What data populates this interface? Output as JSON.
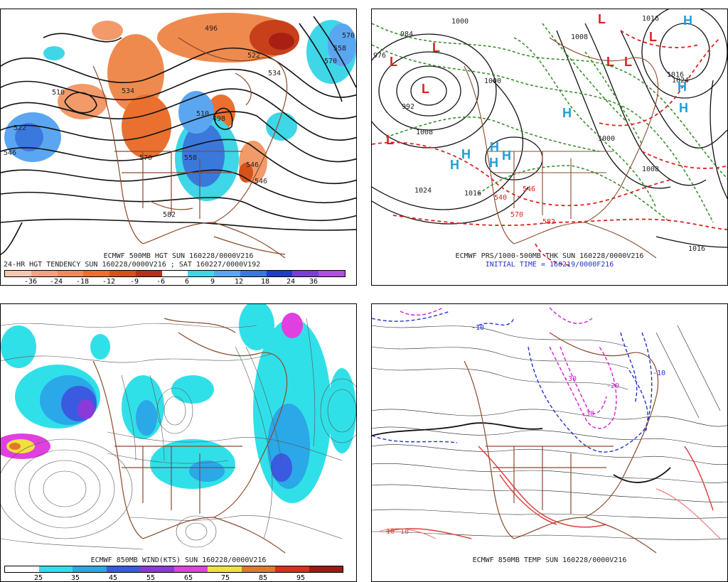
{
  "panels": {
    "p1": {
      "title": "ECMWF 500MB HGT SUN 160228/0000V216",
      "subtitle": "24-HR HGT TENDENCY SUN 160228/0000V216 ; SAT 160227/0000V192",
      "colorbar_labels": [
        "-36",
        "-24",
        "-18",
        "-12",
        "-9",
        "-6",
        "6",
        "9",
        "12",
        "18",
        "24",
        "36"
      ],
      "colorbar_colors": [
        "#f7c8b0",
        "#f2a27e",
        "#ef8a5a",
        "#e9702e",
        "#d4531b",
        "#b2331a",
        "#ffffff",
        "#3fd6e8",
        "#5ba6f0",
        "#3a78dc",
        "#1e3ec8",
        "#7a3fd0",
        "#b04fe0"
      ],
      "contour_labels": [
        "510",
        "522",
        "546",
        "534",
        "570",
        "582",
        "496",
        "522",
        "534",
        "570",
        "558",
        "546",
        "510",
        "498",
        "558",
        "546",
        "570"
      ]
    },
    "p2": {
      "title": "ECMWF PRS/1000-500MB THK SUN 160228/0000V216",
      "subtitle": "INITIAL TIME = 160219/0000F216",
      "contour_labels": [
        "1000",
        "984",
        "976",
        "992",
        "1008",
        "1024",
        "1016",
        "1000",
        "1008",
        "1016",
        "1000",
        "1016",
        "1024",
        "1008",
        "1016",
        "570",
        "540",
        "546",
        "582"
      ]
    },
    "p3": {
      "title": "ECMWF 850MB WIND(KTS) SUN 160228/0000V216",
      "colorbar_labels": [
        "25",
        "35",
        "45",
        "55",
        "65",
        "75",
        "85",
        "95"
      ],
      "colorbar_colors": [
        "#ffffff",
        "#30e0e8",
        "#2aa8e8",
        "#3a5ae0",
        "#8a3ad8",
        "#e040e0",
        "#f0e040",
        "#e07a2a",
        "#d63020",
        "#a01818"
      ]
    },
    "p4": {
      "title": "ECMWF 850MB TEMP SUN 160228/0000V216",
      "contour_labels": [
        "-10",
        "-30",
        "-20",
        "-30",
        "-10",
        "10",
        "10"
      ]
    }
  },
  "colors": {
    "coast": "#8b4a2b",
    "contour_black": "#111111",
    "thickness_red": "#e02020",
    "thickness_green": "#2e8b20",
    "low_red": "#e02020",
    "high_cyan": "#1ea0d8",
    "initial_time_blue": "#2233cc"
  },
  "symbols": {
    "low": "L",
    "high": "H"
  }
}
